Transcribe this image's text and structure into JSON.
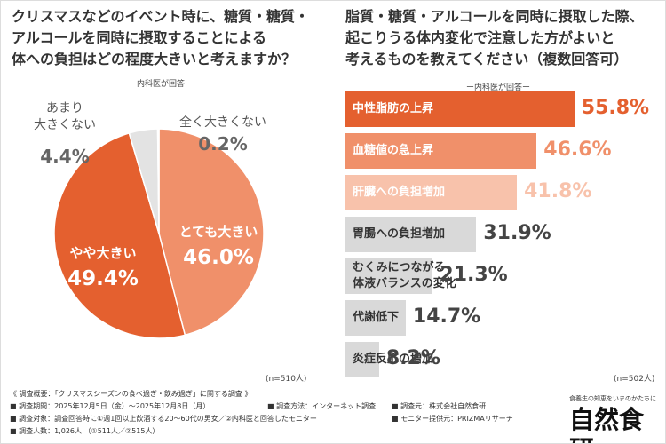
{
  "chart_data": [
    {
      "type": "pie",
      "title": "クリスマスなどのイベント時に、糖質・糖質・\nアルコールを同時に摂取することによる\n体への負担はどの程度大きいと考えますか？",
      "subtitle": "ー内科医が回答ー",
      "note": "(n=510人)",
      "categories": [
        "とても大きい",
        "やや大きい",
        "あまり\n大きくない",
        "全く大きくない"
      ],
      "values": [
        46.0,
        49.4,
        4.4,
        0.2
      ],
      "value_labels": [
        "46.0%",
        "49.4%",
        "4.4%",
        "0.2%"
      ],
      "colors": [
        "#f0906a",
        "#e4602f",
        "#e3e3e3",
        "#f3f3f3"
      ]
    },
    {
      "type": "bar",
      "title": "脂質・糖質・アルコールを同時に摂取した際、\n起こりうる体内変化で注意した方がよいと\n考えるものを教えてください（複数回答可）",
      "subtitle": "ー内科医が回答ー",
      "note": "(n=502人)",
      "categories": [
        "中性脂肪の上昇",
        "血糖値の急上昇",
        "肝臓への負担増加",
        "胃腸への負担増加",
        "むくみにつながる\n体液バランスの変化",
        "代謝低下",
        "炎症反応の増加"
      ],
      "values": [
        55.8,
        46.6,
        41.8,
        31.9,
        21.3,
        14.7,
        8.2
      ],
      "value_labels": [
        "55.8%",
        "46.6%",
        "41.8%",
        "31.9%",
        "21.3%",
        "14.7%",
        "8.2%"
      ],
      "colors": [
        "#e4602f",
        "#f0906a",
        "#f8c2ab",
        "#d9d9d9",
        "#d9d9d9",
        "#d9d9d9",
        "#d9d9d9"
      ]
    }
  ],
  "footer": {
    "heading": "《 調査概要：「クリスマスシーズンの食べ過ぎ・飲み過ぎ」に関する調査 》",
    "rows": [
      [
        "■ 調査期間：2025年12月5日（金）〜2025年12月8日（月）",
        "■ 調査方法：インターネット調査",
        "■ 調査元：株式会社自然食研"
      ],
      [
        "■ 調査対象：調査回答時に①週1回以上飲酒する20〜60代の男女／②内科医と回答したモニター",
        "■ モニター提供元：PRIZMAリサーチ"
      ],
      [
        "■ 調査人数：1,026人 （①511人／②515人）"
      ]
    ]
  },
  "logo": {
    "tagline": "食養生の知恵をいまのかたちに",
    "name": "自然食研"
  }
}
